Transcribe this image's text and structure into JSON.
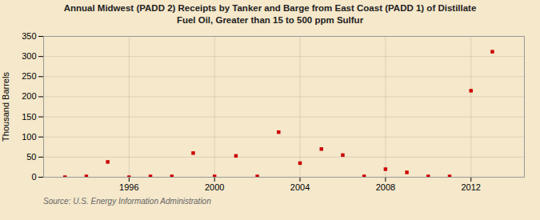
{
  "chart_data": {
    "type": "scatter",
    "title": "Annual Midwest (PADD 2) Receipts by Tanker and Barge from East Coast (PADD 1) of Distillate",
    "subtitle": "Fuel Oil, Greater than 15 to 500 ppm Sulfur",
    "ylabel": "Thousand Barrels",
    "annotations": [
      "Source: U.S. Energy Information Administration"
    ],
    "x": [
      1993,
      1994,
      1995,
      1996,
      1997,
      1998,
      1999,
      2000,
      2001,
      2002,
      2003,
      2004,
      2005,
      2006,
      2007,
      2008,
      2009,
      2010,
      2011,
      2012,
      2013
    ],
    "values": [
      0,
      2,
      38,
      0,
      2,
      2,
      60,
      2,
      53,
      2,
      112,
      35,
      70,
      55,
      2,
      20,
      12,
      2,
      2,
      215,
      312
    ],
    "color": "#cc0000",
    "marker": "square",
    "xlim": [
      1992.0,
      2014.5
    ],
    "xticks": [
      1996,
      2000,
      2004,
      2008,
      2012
    ],
    "ylim": [
      0,
      350
    ],
    "yticks": [
      0,
      50,
      100,
      150,
      200,
      250,
      300,
      350
    ],
    "grid": true
  }
}
